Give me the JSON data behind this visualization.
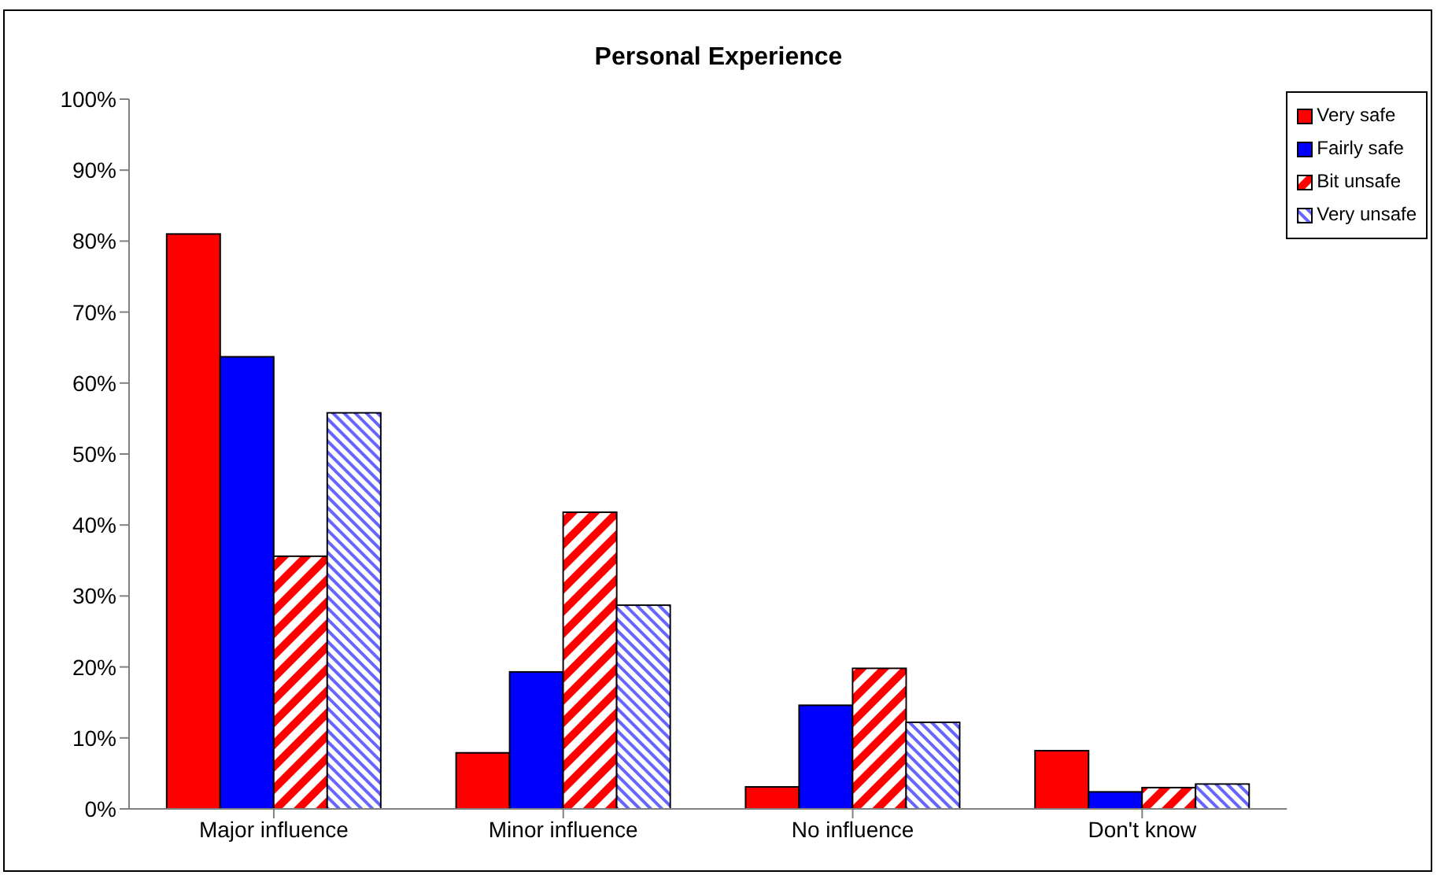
{
  "chart_data": {
    "type": "bar",
    "title": "Personal Experience",
    "categories": [
      "Major influence",
      "Minor influence",
      "No influence",
      "Don't know"
    ],
    "series": [
      {
        "name": "Very safe",
        "color": "#ff0000",
        "values": [
          81.0,
          7.9,
          3.1,
          8.2
        ]
      },
      {
        "name": "Fairly safe",
        "color": "#0000ff",
        "values": [
          63.7,
          19.3,
          14.6,
          2.4
        ]
      },
      {
        "name": "Bit unsafe",
        "color": "#ff0000",
        "values": [
          35.6,
          41.8,
          19.8,
          3.0
        ]
      },
      {
        "name": "Very unsafe",
        "color": "#6666ff",
        "values": [
          55.8,
          28.7,
          12.2,
          3.5
        ]
      }
    ],
    "ylim": [
      0,
      100
    ],
    "yticks": [
      {
        "value": 0,
        "label": "0%"
      },
      {
        "value": 10,
        "label": "10%"
      },
      {
        "value": 20,
        "label": "20%"
      },
      {
        "value": 30,
        "label": "30%"
      },
      {
        "value": 40,
        "label": "40%"
      },
      {
        "value": 50,
        "label": "50%"
      },
      {
        "value": 60,
        "label": "60%"
      },
      {
        "value": 70,
        "label": "70%"
      },
      {
        "value": 80,
        "label": "80%"
      },
      {
        "value": 90,
        "label": "90%"
      },
      {
        "value": 100,
        "label": "100%"
      }
    ],
    "grid": false,
    "legend": "top right"
  }
}
